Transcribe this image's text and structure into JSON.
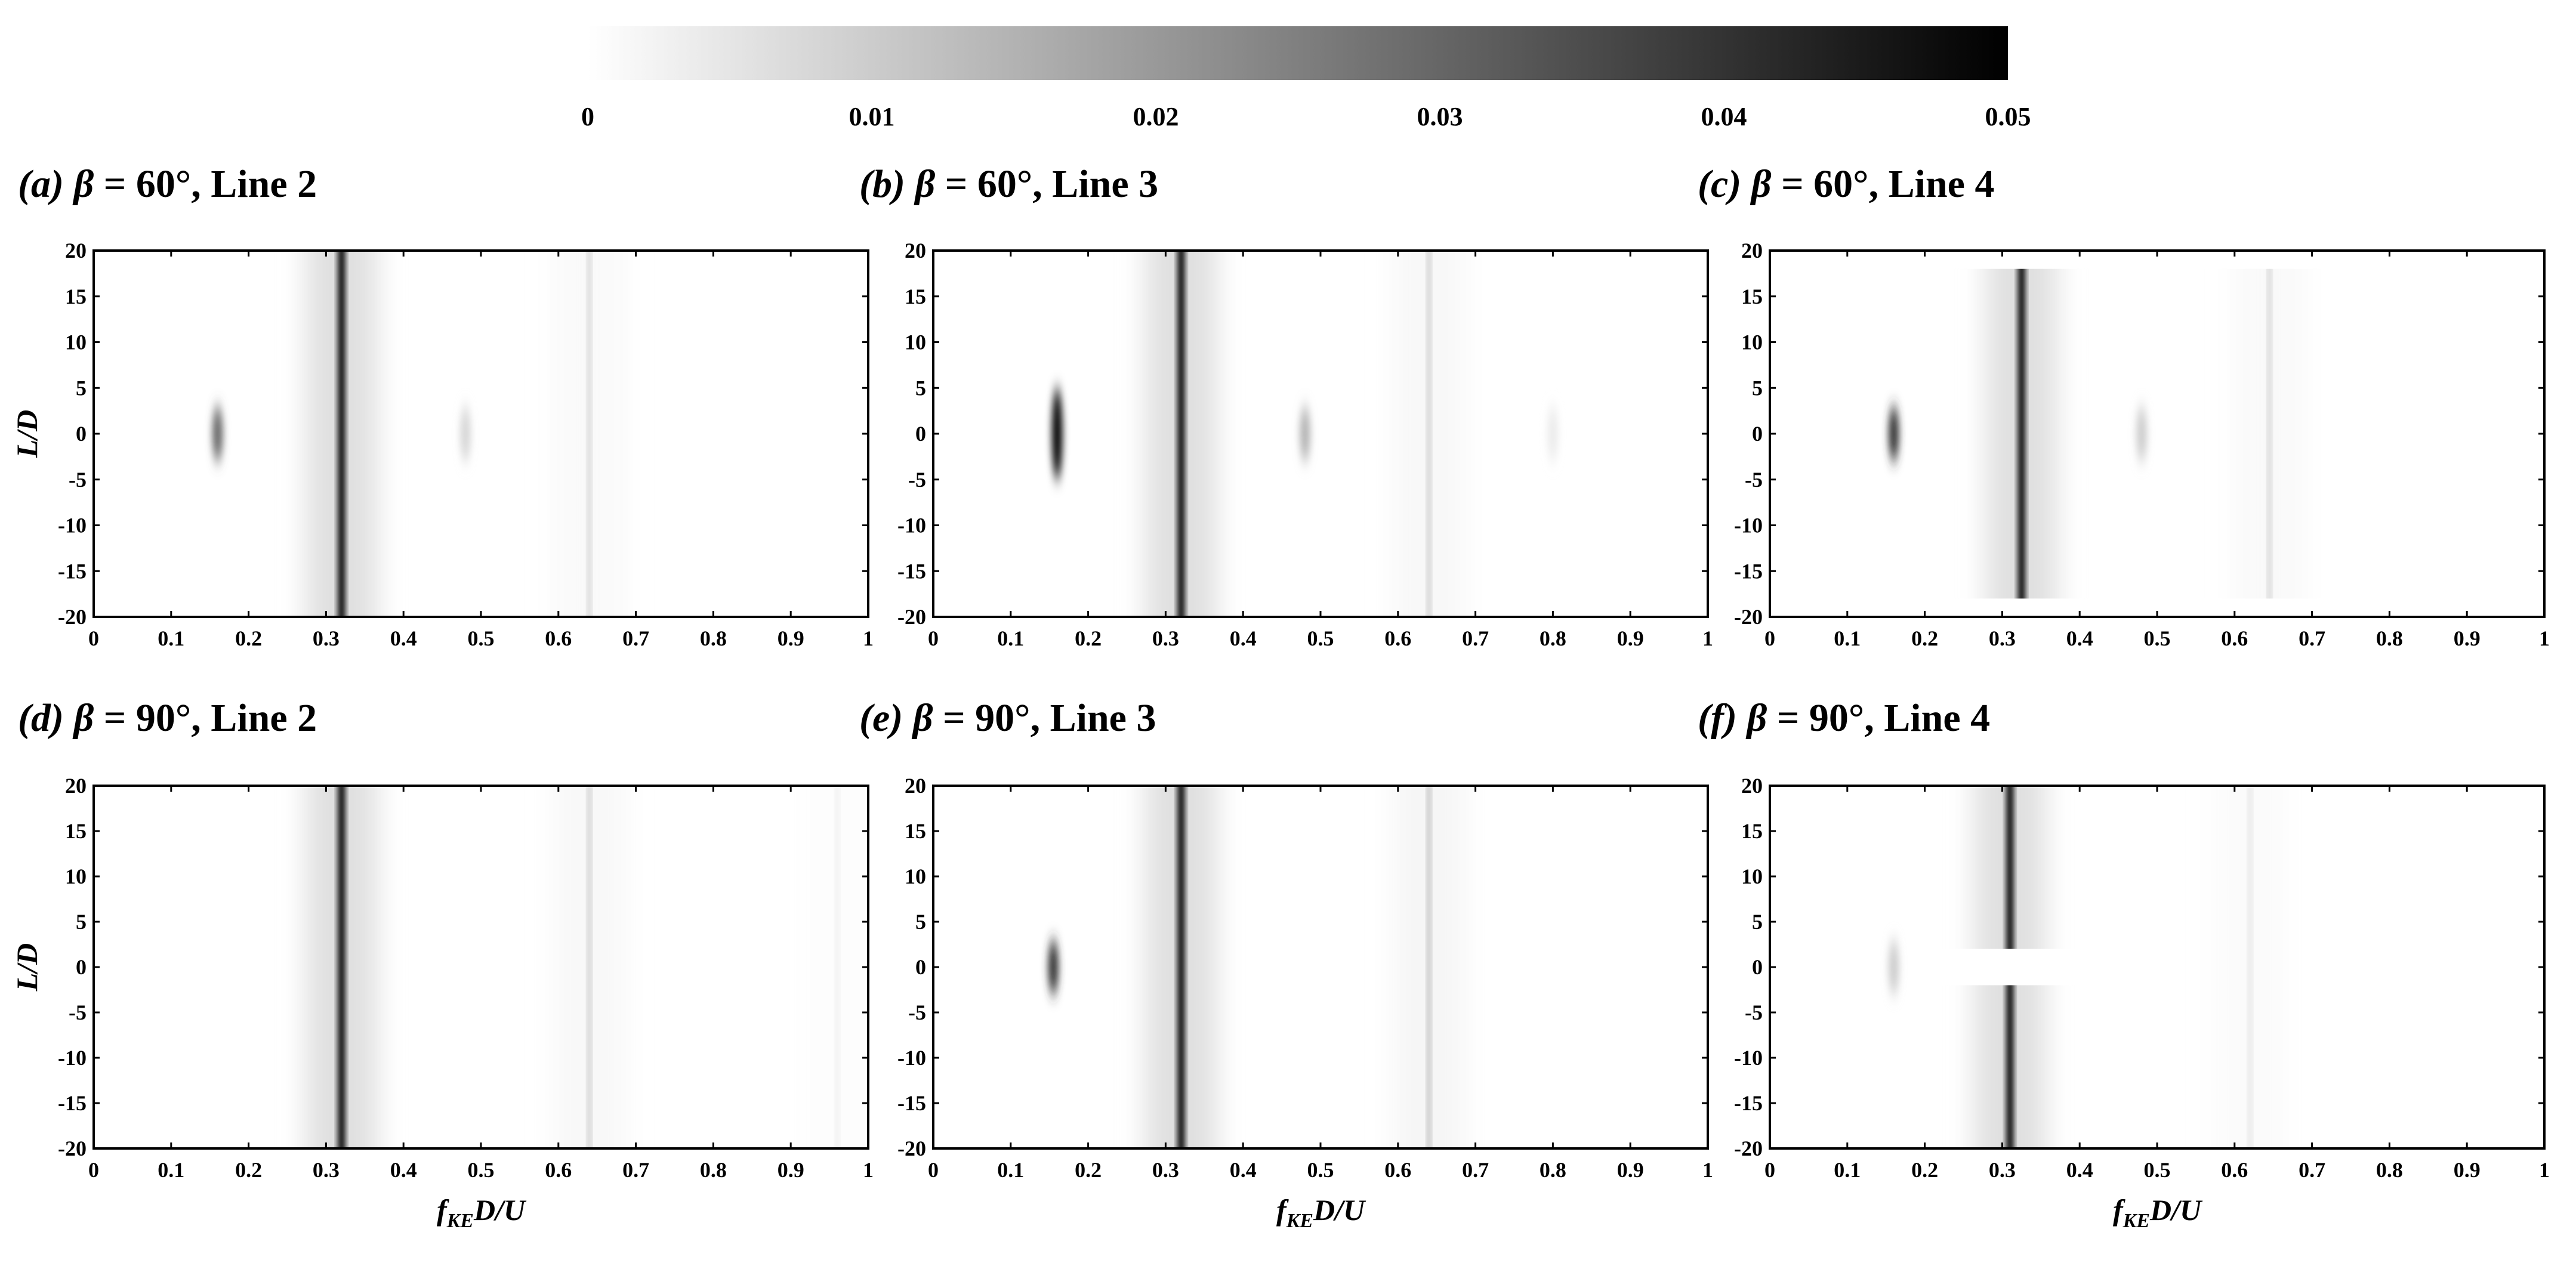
{
  "colorbar": {
    "min": 0,
    "max": 0.05,
    "ticks": [
      "0",
      "0.01",
      "0.02",
      "0.03",
      "0.04",
      "0.05"
    ],
    "colors": [
      "#ffffff",
      "#000000"
    ]
  },
  "chart_data": [
    {
      "type": "heatmap",
      "panel": "(a)",
      "beta": "60°",
      "line": "Line 2",
      "xlabel": "",
      "ylabel": "L/D",
      "xlim": [
        0,
        1
      ],
      "ylim": [
        -20,
        20
      ],
      "xticks": [
        "0",
        "0.1",
        "0.2",
        "0.3",
        "0.4",
        "0.5",
        "0.6",
        "0.7",
        "0.8",
        "0.9",
        "1"
      ],
      "yticks": [
        "20",
        "15",
        "10",
        "5",
        "0",
        "-5",
        "-10",
        "-15",
        "-20"
      ],
      "peaks": [
        {
          "f": 0.32,
          "intensity": 0.05,
          "extent": "full span"
        },
        {
          "f": 0.16,
          "intensity": 0.03,
          "extent": "near L/D = 0"
        },
        {
          "f": 0.64,
          "intensity": 0.01,
          "extent": "full span"
        },
        {
          "f": 0.48,
          "intensity": 0.008,
          "extent": "near L/D = 0"
        }
      ]
    },
    {
      "type": "heatmap",
      "panel": "(b)",
      "beta": "60°",
      "line": "Line 3",
      "xlabel": "",
      "ylabel": "",
      "xlim": [
        0,
        1
      ],
      "ylim": [
        -20,
        20
      ],
      "xticks": [
        "0",
        "0.1",
        "0.2",
        "0.3",
        "0.4",
        "0.5",
        "0.6",
        "0.7",
        "0.8",
        "0.9",
        "1"
      ],
      "yticks": [
        "20",
        "15",
        "10",
        "5",
        "0",
        "-5",
        "-10",
        "-15",
        "-20"
      ],
      "peaks": [
        {
          "f": 0.32,
          "intensity": 0.05,
          "extent": "full span"
        },
        {
          "f": 0.16,
          "intensity": 0.05,
          "extent": "L/D -5 to 5"
        },
        {
          "f": 0.48,
          "intensity": 0.015,
          "extent": "near L/D = 0"
        },
        {
          "f": 0.64,
          "intensity": 0.012,
          "extent": "full span"
        },
        {
          "f": 0.8,
          "intensity": 0.004,
          "extent": "near L/D = 0"
        }
      ]
    },
    {
      "type": "heatmap",
      "panel": "(c)",
      "beta": "60°",
      "line": "Line 4",
      "xlabel": "",
      "ylabel": "",
      "xlim": [
        0,
        1
      ],
      "ylim": [
        -20,
        20
      ],
      "xticks": [
        "0",
        "0.1",
        "0.2",
        "0.3",
        "0.4",
        "0.5",
        "0.6",
        "0.7",
        "0.8",
        "0.9",
        "1"
      ],
      "yticks": [
        "20",
        "15",
        "10",
        "5",
        "0",
        "-5",
        "-10",
        "-15",
        "-20"
      ],
      "peaks": [
        {
          "f": 0.325,
          "intensity": 0.05,
          "extent": "L/D -18 to 18"
        },
        {
          "f": 0.16,
          "intensity": 0.04,
          "extent": "near L/D = 0"
        },
        {
          "f": 0.48,
          "intensity": 0.01,
          "extent": "near L/D = 0"
        },
        {
          "f": 0.645,
          "intensity": 0.01,
          "extent": "L/D -18 to 18"
        }
      ]
    },
    {
      "type": "heatmap",
      "panel": "(d)",
      "beta": "90°",
      "line": "Line 2",
      "xlabel": "f_KE D/U",
      "ylabel": "L/D",
      "xlim": [
        0,
        1
      ],
      "ylim": [
        -20,
        20
      ],
      "xticks": [
        "0",
        "0.1",
        "0.2",
        "0.3",
        "0.4",
        "0.5",
        "0.6",
        "0.7",
        "0.8",
        "0.9",
        "1"
      ],
      "yticks": [
        "20",
        "15",
        "10",
        "5",
        "0",
        "-5",
        "-10",
        "-15",
        "-20"
      ],
      "peaks": [
        {
          "f": 0.32,
          "intensity": 0.05,
          "extent": "full span"
        },
        {
          "f": 0.64,
          "intensity": 0.012,
          "extent": "full span"
        },
        {
          "f": 0.96,
          "intensity": 0.004,
          "extent": "full span"
        }
      ]
    },
    {
      "type": "heatmap",
      "panel": "(e)",
      "beta": "90°",
      "line": "Line 3",
      "xlabel": "f_KE D/U",
      "ylabel": "",
      "xlim": [
        0,
        1
      ],
      "ylim": [
        -20,
        20
      ],
      "xticks": [
        "0",
        "0.1",
        "0.2",
        "0.3",
        "0.4",
        "0.5",
        "0.6",
        "0.7",
        "0.8",
        "0.9",
        "1"
      ],
      "yticks": [
        "20",
        "15",
        "10",
        "5",
        "0",
        "-5",
        "-10",
        "-15",
        "-20"
      ],
      "peaks": [
        {
          "f": 0.32,
          "intensity": 0.05,
          "extent": "full span"
        },
        {
          "f": 0.155,
          "intensity": 0.04,
          "extent": "near L/D = 0"
        },
        {
          "f": 0.64,
          "intensity": 0.015,
          "extent": "full span"
        }
      ]
    },
    {
      "type": "heatmap",
      "panel": "(f)",
      "beta": "90°",
      "line": "Line 4",
      "xlabel": "f_KE D/U",
      "ylabel": "",
      "xlim": [
        0,
        1
      ],
      "ylim": [
        -20,
        20
      ],
      "xticks": [
        "0",
        "0.1",
        "0.2",
        "0.3",
        "0.4",
        "0.5",
        "0.6",
        "0.7",
        "0.8",
        "0.9",
        "1"
      ],
      "yticks": [
        "20",
        "15",
        "10",
        "5",
        "0",
        "-5",
        "-10",
        "-15",
        "-20"
      ],
      "peaks": [
        {
          "f": 0.31,
          "intensity": 0.05,
          "extent": "L/D 2 to 20 and -2 to -20"
        },
        {
          "f": 0.16,
          "intensity": 0.01,
          "extent": "near L/D = 0"
        },
        {
          "f": 0.62,
          "intensity": 0.006,
          "extent": "full span"
        }
      ]
    }
  ]
}
